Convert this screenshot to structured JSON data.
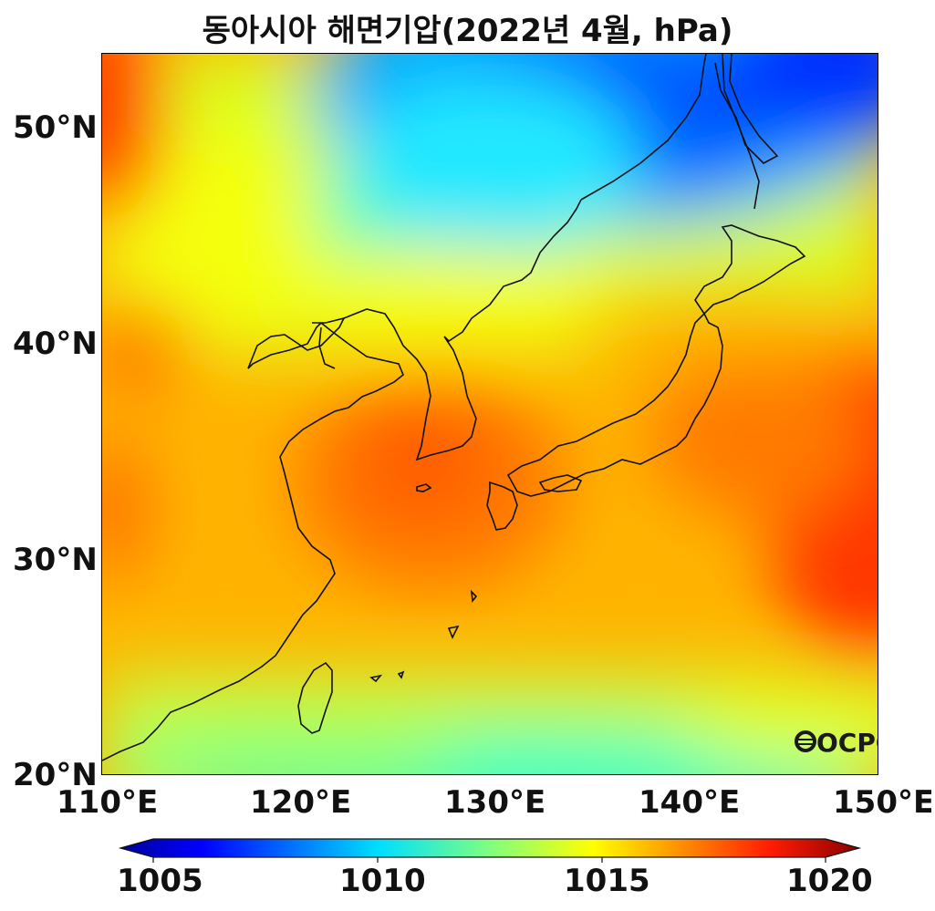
{
  "title": "동아시아 해면기압(2022년 4월, hPa)",
  "map": {
    "region": "East Asia",
    "projection": "PlateCarree",
    "lon_range": [
      110,
      150
    ],
    "lat_range": [
      20,
      54
    ],
    "yticks": [
      "50°N",
      "40°N",
      "30°N",
      "20°N"
    ],
    "xticks": [
      "110°E",
      "120°E",
      "130°E",
      "140°E",
      "150°E"
    ],
    "logo_text": "OCPC",
    "colormap": "jet",
    "field_colors": {
      "low": "#0050ff",
      "mid_low": "#38ffd0",
      "mid": "#f4ff10",
      "mid_high": "#ffb400",
      "high": "#ff3800"
    }
  },
  "colorbar": {
    "min": 1005,
    "max": 1020,
    "ticks": [
      "1005",
      "1010",
      "1015",
      "1020"
    ],
    "extend": "both"
  }
}
